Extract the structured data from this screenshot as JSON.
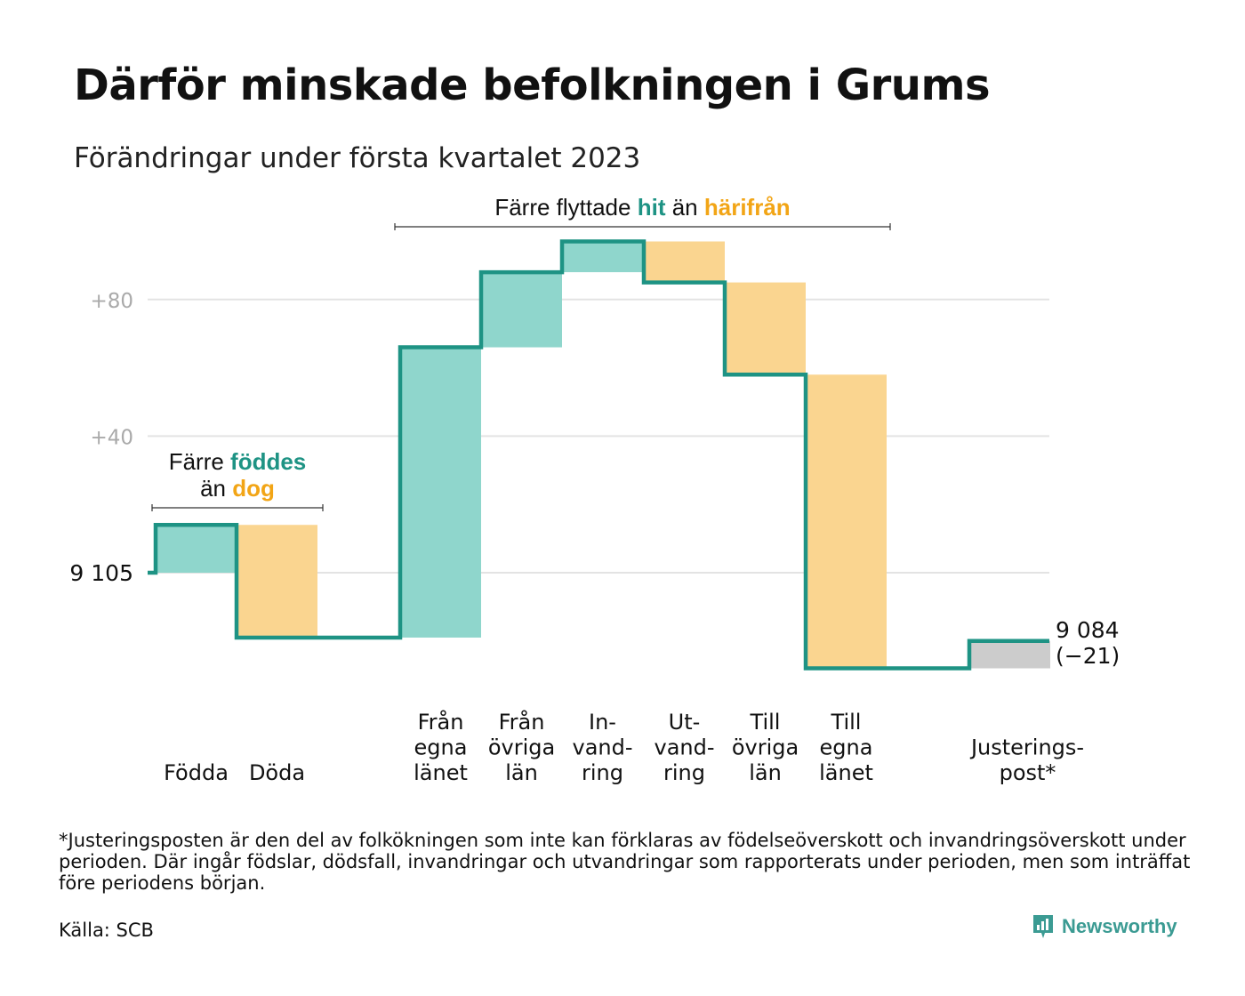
{
  "title": "Därför minskade befolkningen i Grums",
  "subtitle": "Förändringar under första kvartalet 2023",
  "footnote": "*Justeringsposten är den del av folkökningen som inte kan förklaras av födelseöverskott och invandringsöverskott under perioden. Där ingår födslar, dödsfall, invandringar och utvandringar som rapporterats under perioden, men som inträffat före periodens början.",
  "source": "Källa: SCB",
  "brand": "Newsworthy",
  "colors": {
    "increase": "#8fd6cc",
    "decrease": "#fad590",
    "adjustment": "#cccccc",
    "line": "#1e9384",
    "accent_teal": "#1e9384",
    "accent_orange": "#f2a516"
  },
  "chart_data": {
    "type": "waterfall",
    "start": {
      "value": 9105,
      "label": "9 105"
    },
    "end": {
      "value": 9084,
      "label": "9 084",
      "change_label": "(−21)"
    },
    "yticks": [
      {
        "value": 40,
        "label": "+40"
      },
      {
        "value": 80,
        "label": "+80"
      }
    ],
    "ylim": [
      -29,
      96
    ],
    "grid": true,
    "steps": [
      {
        "label": [
          "Födda"
        ],
        "change": 14,
        "kind": "increase"
      },
      {
        "label": [
          "Döda"
        ],
        "change": -33,
        "kind": "decrease"
      },
      {
        "label": [
          "Från",
          "egna",
          "länet"
        ],
        "change": 85,
        "kind": "increase"
      },
      {
        "label": [
          "Från",
          "övriga",
          "län"
        ],
        "change": 22,
        "kind": "increase"
      },
      {
        "label": [
          "In-",
          "vand-",
          "ring"
        ],
        "change": 9,
        "kind": "increase"
      },
      {
        "label": [
          "Ut-",
          "vand-",
          "ring"
        ],
        "change": -12,
        "kind": "decrease"
      },
      {
        "label": [
          "Till",
          "övriga",
          "län"
        ],
        "change": -27,
        "kind": "decrease"
      },
      {
        "label": [
          "Till",
          "egna",
          "länet"
        ],
        "change": -86,
        "kind": "decrease"
      },
      {
        "label": [
          "Justerings-",
          "post*"
        ],
        "change": 8,
        "kind": "adjustment"
      }
    ],
    "annotations": [
      {
        "lines": [
          [
            {
              "text": "Färre ",
              "role": "plain"
            },
            {
              "text": "föddes",
              "role": "teal"
            }
          ],
          [
            {
              "text": "än ",
              "role": "plain"
            },
            {
              "text": "dog",
              "role": "orange"
            }
          ]
        ],
        "from_step": 0,
        "to_step": 1
      },
      {
        "lines": [
          [
            {
              "text": "Färre flyttade ",
              "role": "plain"
            },
            {
              "text": "hit",
              "role": "teal"
            },
            {
              "text": " än ",
              "role": "plain"
            },
            {
              "text": "härifrån",
              "role": "orange"
            }
          ]
        ],
        "from_step": 2,
        "to_step": 7
      }
    ]
  }
}
